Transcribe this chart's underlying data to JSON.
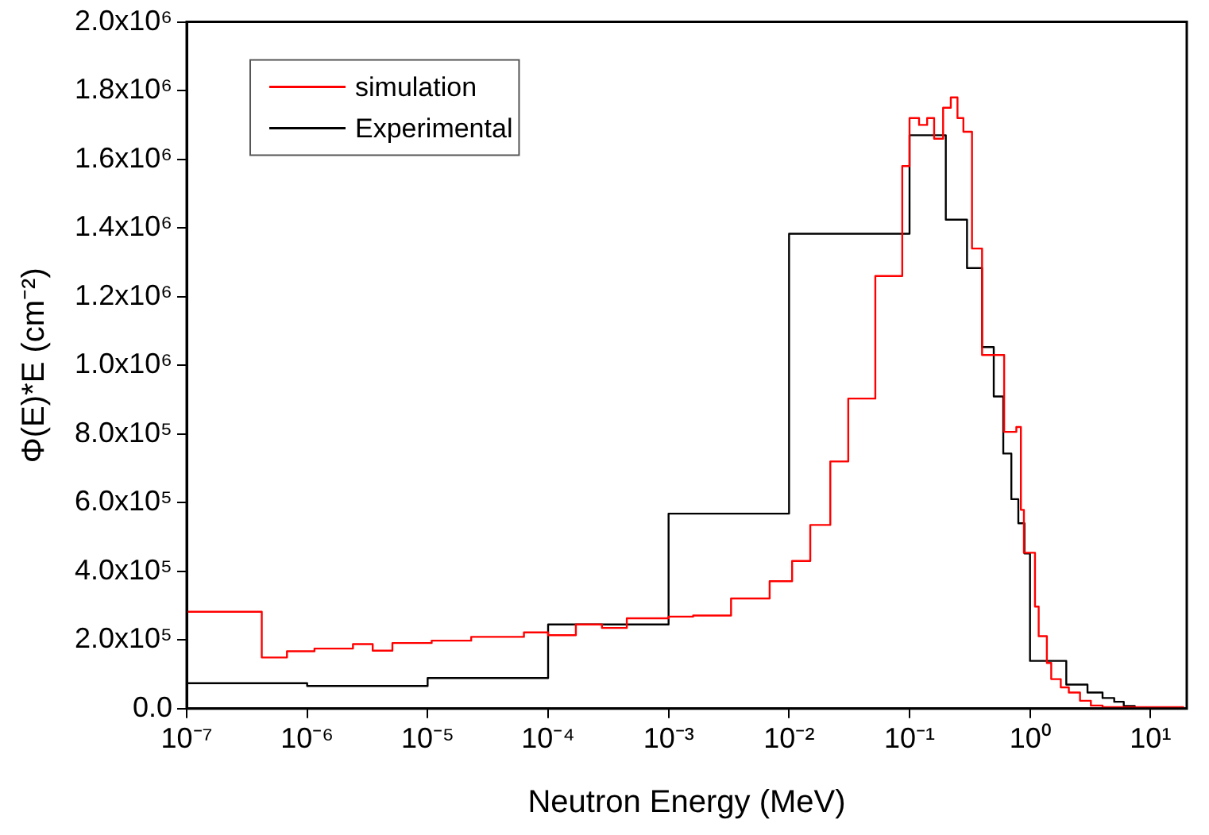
{
  "chart_data": {
    "type": "step",
    "xlabel": "Neutron Energy (MeV)",
    "ylabel": "Φ(E)*E (cm⁻²)",
    "log": "x",
    "xlim": [
      1e-07,
      20
    ],
    "ylim": [
      0,
      2000000
    ],
    "xticks": [
      {
        "value": 1e-07,
        "label": "10⁻⁷"
      },
      {
        "value": 1e-06,
        "label": "10⁻⁶"
      },
      {
        "value": 1e-05,
        "label": "10⁻⁵"
      },
      {
        "value": 0.0001,
        "label": "10⁻⁴"
      },
      {
        "value": 0.001,
        "label": "10⁻³"
      },
      {
        "value": 0.01,
        "label": "10⁻²"
      },
      {
        "value": 0.1,
        "label": "10⁻¹"
      },
      {
        "value": 1,
        "label": "10⁰"
      },
      {
        "value": 10,
        "label": "10¹"
      }
    ],
    "yticks": [
      {
        "value": 0,
        "label": "0.0"
      },
      {
        "value": 200000,
        "label": "2.0x10⁵"
      },
      {
        "value": 400000,
        "label": "4.0x10⁵"
      },
      {
        "value": 600000,
        "label": "6.0x10⁵"
      },
      {
        "value": 800000,
        "label": "8.0x10⁵"
      },
      {
        "value": 1000000,
        "label": "1.0x10⁶"
      },
      {
        "value": 1200000,
        "label": "1.2x10⁶"
      },
      {
        "value": 1400000,
        "label": "1.4x10⁶"
      },
      {
        "value": 1600000,
        "label": "1.6x10⁶"
      },
      {
        "value": 1800000,
        "label": "1.8x10⁶"
      },
      {
        "value": 2000000,
        "label": "2.0x10⁶"
      }
    ],
    "grid": false,
    "legend": "top left",
    "line_style": "solid",
    "marker": "none",
    "series": [
      {
        "name": "simulation",
        "color": "#ff0000",
        "x": [
          1e-07,
          4.2e-07,
          6.8e-07,
          1.15e-06,
          2.4e-06,
          3.5e-06,
          5.1e-06,
          1.08e-05,
          2.3e-05,
          6.3e-05,
          0.0001,
          0.00017,
          0.00028,
          0.00045,
          0.001,
          0.0016,
          0.0033,
          0.0069,
          0.0106,
          0.015,
          0.022,
          0.031,
          0.052,
          0.087,
          0.1,
          0.12,
          0.14,
          0.16,
          0.19,
          0.22,
          0.25,
          0.28,
          0.33,
          0.4,
          0.61,
          0.77,
          0.84,
          0.89,
          0.99,
          1.1,
          1.18,
          1.38,
          1.5,
          1.8,
          2.1,
          2.6,
          3.2,
          4,
          19
        ],
        "values": [
          282000,
          149000,
          167000,
          175000,
          188000,
          169000,
          191000,
          198000,
          209000,
          222000,
          214000,
          245000,
          235000,
          263000,
          268000,
          271000,
          321000,
          371000,
          430000,
          535000,
          720000,
          903000,
          1260000,
          1580000,
          1720000,
          1700000,
          1720000,
          1660000,
          1750000,
          1780000,
          1720000,
          1680000,
          1340000,
          1030000,
          806000,
          820000,
          579000,
          454000,
          454000,
          297000,
          211000,
          133000,
          86000,
          62000,
          47000,
          23000,
          9000,
          4000,
          4000
        ]
      },
      {
        "name": "Experimental",
        "color": "#000000",
        "x": [
          1e-07,
          1e-06,
          1e-05,
          0.0001,
          0.001,
          0.01,
          0.1,
          0.2,
          0.3,
          0.4,
          0.5,
          0.6,
          0.7,
          0.8,
          0.9,
          1,
          2,
          3,
          4,
          5,
          6,
          7.4
        ],
        "values": [
          74000,
          66000,
          89000,
          245000,
          568000,
          1383000,
          1670000,
          1424000,
          1283000,
          1053000,
          909000,
          743000,
          610000,
          540000,
          452000,
          139000,
          70000,
          47000,
          31000,
          20000,
          8000,
          0
        ]
      }
    ]
  }
}
